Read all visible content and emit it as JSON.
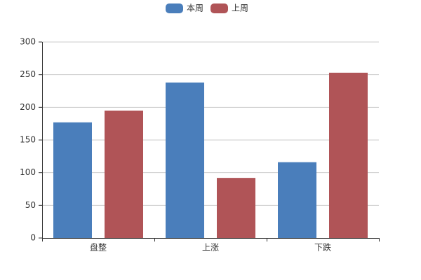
{
  "chart_data": {
    "type": "bar",
    "categories": [
      "盘整",
      "上涨",
      "下跌"
    ],
    "series": [
      {
        "name": "本周",
        "color": "#4a7ebb",
        "values": [
          177,
          238,
          116
        ]
      },
      {
        "name": "上周",
        "color": "#b05457",
        "values": [
          195,
          92,
          253
        ]
      }
    ],
    "ylim": [
      0,
      300
    ],
    "yticks": [
      0,
      50,
      100,
      150,
      200,
      250,
      300
    ],
    "grid": true,
    "legend": "top"
  }
}
